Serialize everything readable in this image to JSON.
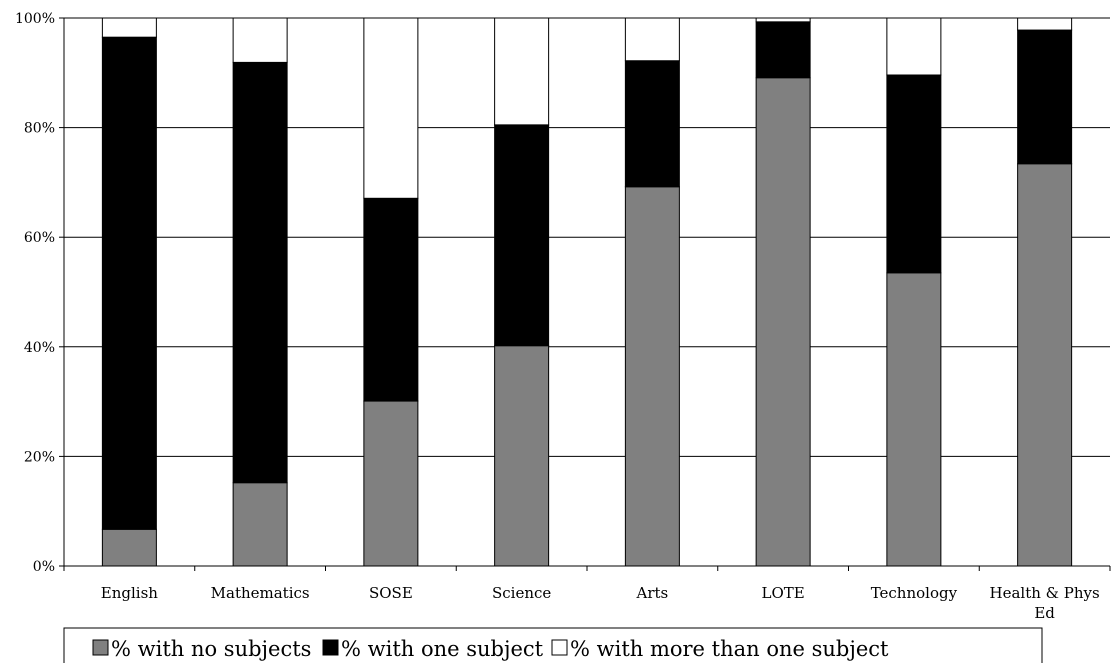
{
  "chart_data": {
    "type": "bar",
    "stacked": true,
    "percent_stacked": true,
    "categories": [
      "English",
      "Mathematics",
      "SOSE",
      "Science",
      "Arts",
      "LOTE",
      "Technology",
      "Health & Phys Ed"
    ],
    "series": [
      {
        "name": "% with no subjects",
        "color": "#808080",
        "values": [
          6.7,
          15.2,
          30.1,
          40.2,
          69.2,
          89.1,
          53.5,
          73.4
        ]
      },
      {
        "name": "% with one subject",
        "color": "#000000",
        "values": [
          89.8,
          76.7,
          37.0,
          40.3,
          23.0,
          10.2,
          36.1,
          24.4
        ]
      },
      {
        "name": "% with more than one subject",
        "color": "#ffffff",
        "values": [
          3.5,
          8.1,
          32.9,
          19.5,
          7.8,
          0.7,
          10.4,
          2.2
        ]
      }
    ],
    "ylim": [
      0,
      100
    ],
    "yticks": [
      "0%",
      "20%",
      "40%",
      "60%",
      "80%",
      "100%"
    ],
    "grid": true,
    "legend_position": "bottom",
    "title": "",
    "xlabel": "",
    "ylabel": ""
  }
}
